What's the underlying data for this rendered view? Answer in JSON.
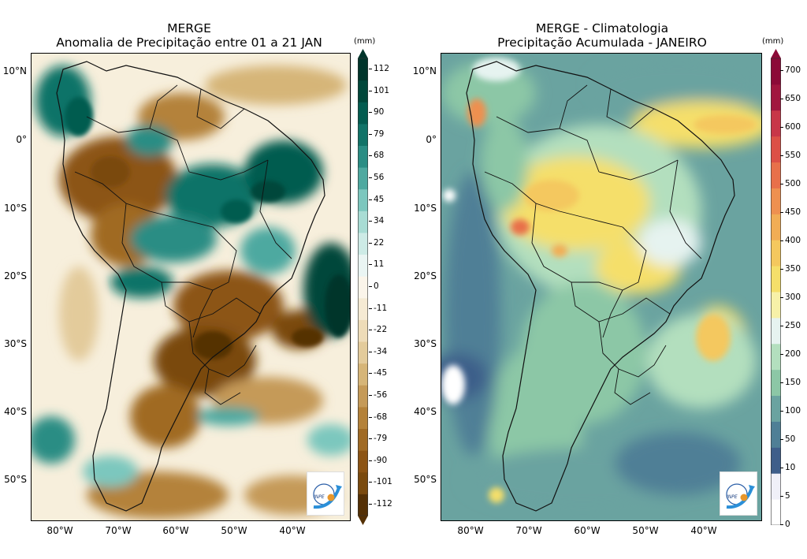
{
  "panels": [
    {
      "id": "anomaly",
      "title_line1": "MERGE",
      "title_line2": "Anomalia de Precipitação entre 01 a 21 JAN",
      "unit": "(mm)",
      "colorbar_ticks": [
        "112",
        "101",
        "90",
        "79",
        "68",
        "56",
        "45",
        "34",
        "22",
        "11",
        "0",
        "-11",
        "-22",
        "-34",
        "-45",
        "-56",
        "-68",
        "-79",
        "-90",
        "-101",
        "-112"
      ],
      "colorbar_colors": [
        "#543005",
        "#7a4a0e",
        "#8c5414",
        "#a06a24",
        "#b4823a",
        "#c59a58",
        "#d6b578",
        "#e3cb9b",
        "#eedcb8",
        "#f5ead3",
        "#fbf5ea",
        "#eaf5f3",
        "#cdebe6",
        "#a8dcd4",
        "#7cc7be",
        "#4ea9a0",
        "#2a8d84",
        "#117368",
        "#035c50",
        "#00473a",
        "#00352b"
      ],
      "lat_labels": [
        "10°N",
        "0°",
        "10°S",
        "20°S",
        "30°S",
        "40°S",
        "50°S"
      ],
      "lon_labels": [
        "80°W",
        "70°W",
        "60°W",
        "50°W",
        "40°W"
      ],
      "logo_text": "INPE"
    },
    {
      "id": "climatology",
      "title_line1": "MERGE - Climatologia",
      "title_line2": "Precipitação Acumulada - JANEIRO",
      "unit": "(mm)",
      "colorbar_ticks": [
        "700",
        "650",
        "600",
        "550",
        "500",
        "450",
        "400",
        "350",
        "300",
        "250",
        "200",
        "150",
        "100",
        "50",
        "10",
        "5",
        "0"
      ],
      "colorbar_colors": [
        "#ffffff",
        "#f0f0f8",
        "#3e5e8a",
        "#4f7f96",
        "#6aa3a0",
        "#8cc7a6",
        "#b3dfbe",
        "#e6f3f0",
        "#f7f1a8",
        "#f5df6a",
        "#f4c85e",
        "#f1ad55",
        "#ee9050",
        "#e8704a",
        "#dc5046",
        "#c83648",
        "#a1163f",
        "#8c0a38"
      ],
      "lat_labels": [
        "10°N",
        "0°",
        "10°S",
        "20°S",
        "30°S",
        "40°S",
        "50°S"
      ],
      "lon_labels": [
        "80°W",
        "70°W",
        "60°W",
        "50°W",
        "40°W"
      ],
      "logo_text": "INPE"
    }
  ]
}
